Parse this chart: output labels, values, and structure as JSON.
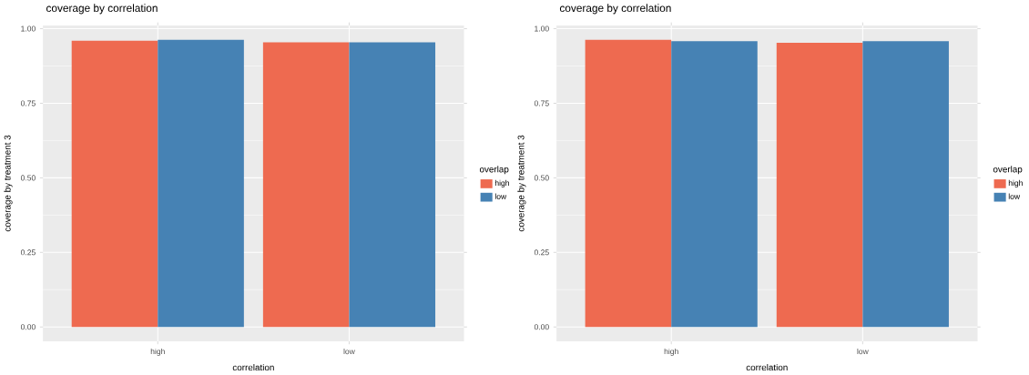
{
  "chart_data": [
    {
      "type": "bar",
      "title": "coverage by correlation",
      "xlabel": "correlation",
      "ylabel": "coverage by treatment 3",
      "legend_title": "overlap",
      "categories": [
        "high",
        "low"
      ],
      "series": [
        {
          "name": "high",
          "color": "#ee6a50",
          "values": [
            0.96,
            0.954
          ]
        },
        {
          "name": "low",
          "color": "#4682b4",
          "values": [
            0.963,
            0.954
          ]
        }
      ],
      "ylim": [
        -0.048,
        1.011
      ],
      "yticks": [
        {
          "value": 0,
          "label": "0.00"
        },
        {
          "value": 0.25,
          "label": "0.25"
        },
        {
          "value": 0.5,
          "label": "0.50"
        },
        {
          "value": 0.75,
          "label": "0.75"
        },
        {
          "value": 1,
          "label": "1.00"
        }
      ],
      "grid": true,
      "legend": "right"
    },
    {
      "type": "bar",
      "title": "coverage by correlation",
      "xlabel": "correlation",
      "ylabel": "coverage by treatment 3",
      "legend_title": "overlap",
      "categories": [
        "high",
        "low"
      ],
      "series": [
        {
          "name": "high",
          "color": "#ee6a50",
          "values": [
            0.963,
            0.953
          ]
        },
        {
          "name": "low",
          "color": "#4682b4",
          "values": [
            0.958,
            0.958
          ]
        }
      ],
      "ylim": [
        -0.048,
        1.011
      ],
      "yticks": [
        {
          "value": 0,
          "label": "0.00"
        },
        {
          "value": 0.25,
          "label": "0.25"
        },
        {
          "value": 0.5,
          "label": "0.50"
        },
        {
          "value": 0.75,
          "label": "0.75"
        },
        {
          "value": 1,
          "label": "1.00"
        }
      ],
      "grid": true,
      "legend": "right"
    }
  ]
}
